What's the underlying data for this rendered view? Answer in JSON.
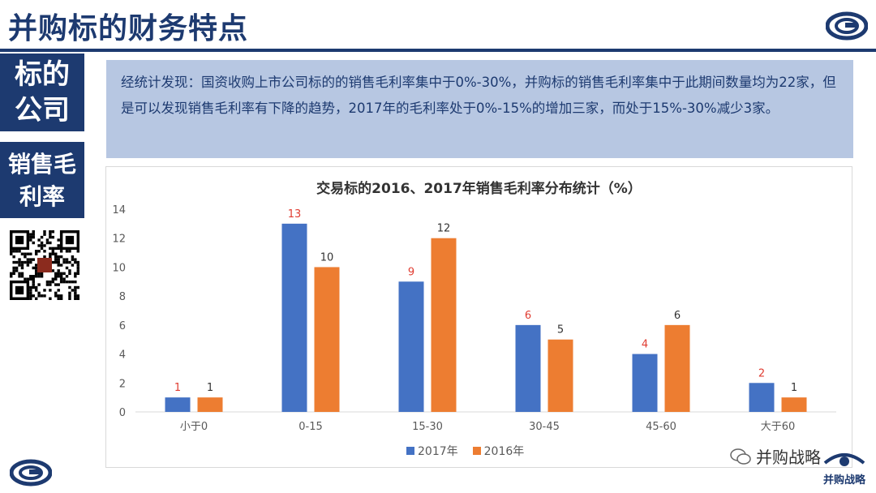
{
  "header": {
    "title": "并购标的财务特点"
  },
  "sidebar": {
    "section1": {
      "line1": "标的",
      "line2": "公司"
    },
    "section2": {
      "line1": "销售毛",
      "line2": "利率"
    },
    "qr_badge": "并购战略"
  },
  "finding": {
    "text": "经统计发现：国资收购上市公司标的的销售毛利率集中于0%-30%，并购标的销售毛利率集中于此期间数量均为22家，但是可以发现销售毛利率有下降的趋势，2017年的毛利率处于0%-15%的增加三家，而处于15%-30%减少3家。"
  },
  "footer": {
    "watermark": "并购战略",
    "brand": "并购战略"
  },
  "colors": {
    "navy": "#1d3a70",
    "series2017": "#4472c4",
    "series2016": "#ed7d31",
    "label2017": "#e03c31",
    "label2016": "#333333"
  },
  "chart_data": {
    "type": "bar",
    "title": "交易标的2016、2017年销售毛利率分布统计（%）",
    "categories": [
      "小于0",
      "0-15",
      "15-30",
      "30-45",
      "45-60",
      "大于60"
    ],
    "series": [
      {
        "name": "2017年",
        "values": [
          1,
          13,
          9,
          6,
          4,
          2
        ]
      },
      {
        "name": "2016年",
        "values": [
          1,
          10,
          12,
          5,
          6,
          1
        ]
      }
    ],
    "yticks": [
      0,
      2,
      4,
      6,
      8,
      10,
      12,
      14
    ],
    "ylim": [
      0,
      14
    ],
    "grid": false,
    "legend": "bottom"
  }
}
